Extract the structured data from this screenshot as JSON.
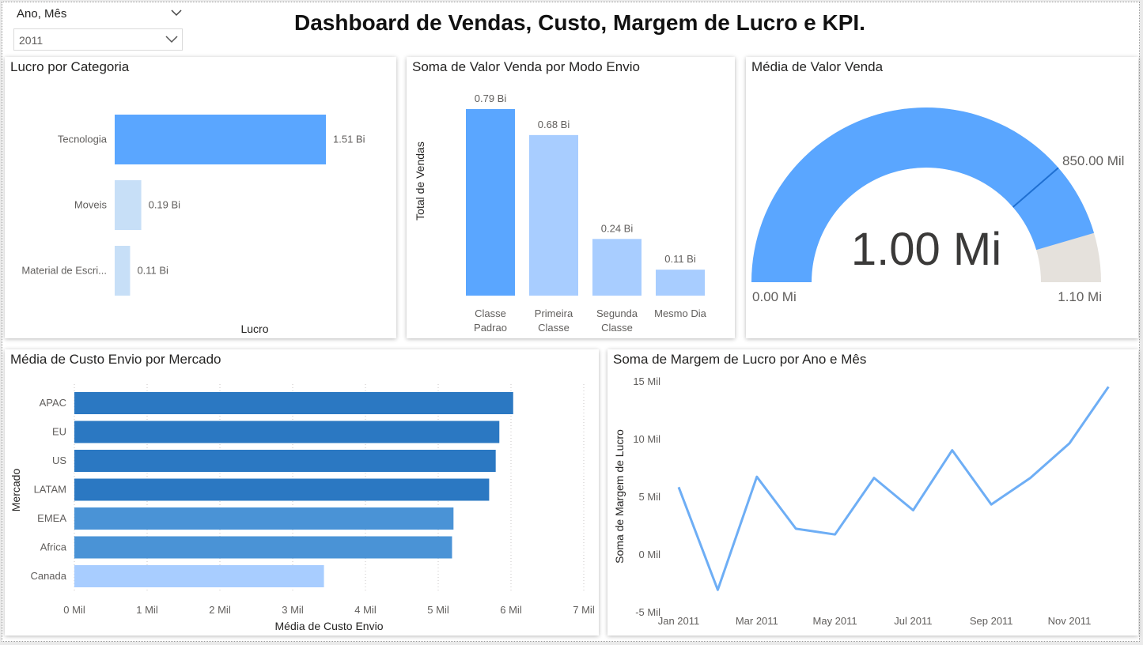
{
  "header": {
    "title": "Dashboard de Vendas, Custo, Margem de Lucro e KPI.",
    "slicer": {
      "label": "Ano, Mês",
      "value": "2011"
    }
  },
  "colors": {
    "accent_blue": "#5aa6ff",
    "light_blue": "#c7dff7",
    "mid_blue": "#a8cdff",
    "gauge_remaining": "#e5e1dc",
    "dark_blue_1": "#2b78c2",
    "dark_blue_2": "#4a93d6",
    "line_blue": "#6eaef5"
  },
  "chart_data": [
    {
      "id": "lucro-categoria",
      "type": "bar",
      "orientation": "horizontal",
      "title": "Lucro por Categoria",
      "xlabel": "Lucro",
      "ylabel": "",
      "categories": [
        "Tecnologia",
        "Moveis",
        "Material de Escri..."
      ],
      "values": [
        1.51,
        0.19,
        0.11
      ],
      "data_labels": [
        "1.51 Bi",
        "0.19 Bi",
        "0.11 Bi"
      ],
      "unit": "Bi",
      "xlim": [
        0,
        1.51
      ]
    },
    {
      "id": "valor-modo-envio",
      "type": "bar",
      "orientation": "vertical",
      "title": "Soma de Valor Venda por Modo Envio",
      "ylabel": "Total de Vendas",
      "xlabel": "",
      "categories": [
        [
          "Classe",
          "Padrao"
        ],
        [
          "Primeira",
          "Classe"
        ],
        [
          "Segunda",
          "Classe"
        ],
        [
          "Mesmo Dia"
        ]
      ],
      "values": [
        0.79,
        0.68,
        0.24,
        0.11
      ],
      "data_labels": [
        "0.79 Bi",
        "0.68 Bi",
        "0.24 Bi",
        "0.11 Bi"
      ],
      "unit": "Bi",
      "ylim": [
        0,
        0.79
      ]
    },
    {
      "id": "media-valor-venda",
      "type": "gauge",
      "title": "Média de Valor Venda",
      "value": 1.0,
      "value_label": "1.00 Mi",
      "min": 0,
      "min_label": "0.00 Mi",
      "max": 1.1,
      "max_label": "1.10 Mi",
      "target": 0.85,
      "target_label": "850.00 Mil"
    },
    {
      "id": "custo-envio-mercado",
      "type": "bar",
      "orientation": "horizontal",
      "title": "Média de Custo Envio por Mercado",
      "xlabel": "Média de Custo Envio",
      "ylabel": "Mercado",
      "categories": [
        "APAC",
        "EU",
        "US",
        "LATAM",
        "EMEA",
        "Africa",
        "Canada"
      ],
      "values": [
        6.03,
        5.84,
        5.79,
        5.7,
        5.21,
        5.19,
        3.43
      ],
      "xlim": [
        0,
        7
      ],
      "xticks": [
        0,
        1,
        2,
        3,
        4,
        5,
        6,
        7
      ],
      "xtick_labels": [
        "0 Mil",
        "1 Mil",
        "2 Mil",
        "3 Mil",
        "4 Mil",
        "5 Mil",
        "6 Mil",
        "7 Mil"
      ],
      "grid": true
    },
    {
      "id": "margem-lucro-mes",
      "type": "line",
      "title": "Soma de Margem de Lucro por Ano e Mês",
      "ylabel": "Soma de Margem de Lucro",
      "xlabel": "",
      "x": [
        "Jan 2011",
        "Feb 2011",
        "Mar 2011",
        "Apr 2011",
        "May 2011",
        "Jun 2011",
        "Jul 2011",
        "Aug 2011",
        "Sep 2011",
        "Oct 2011",
        "Nov 2011",
        "Dec 2011"
      ],
      "xtick_labels": [
        "Jan 2011",
        "",
        "Mar 2011",
        "",
        "May 2011",
        "",
        "Jul 2011",
        "",
        "Sep 2011",
        "",
        "Nov 2011",
        ""
      ],
      "values": [
        5.8,
        -3.1,
        6.7,
        2.2,
        1.7,
        6.6,
        3.8,
        9.0,
        4.3,
        6.6,
        9.6,
        14.5
      ],
      "ylim": [
        -5,
        15
      ],
      "yticks": [
        -5,
        0,
        5,
        10,
        15
      ],
      "ytick_labels": [
        "-5 Mil",
        "0 Mil",
        "5 Mil",
        "10 Mil",
        "15 Mil"
      ],
      "unit": "Mil"
    }
  ]
}
